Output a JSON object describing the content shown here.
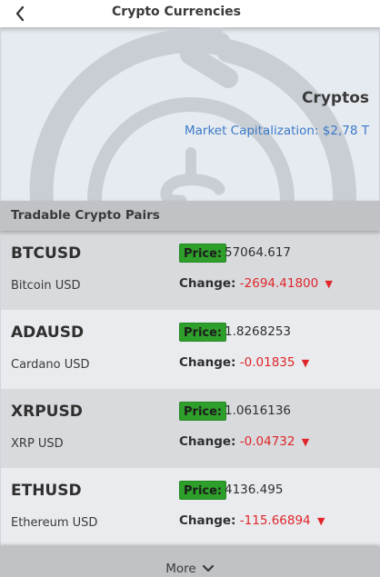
{
  "header": {
    "title": "Crypto Currencies",
    "back_icon": "chevron-left-icon"
  },
  "hero": {
    "title": "Cryptos",
    "market_cap": "Market Capitalization: $2,78 T",
    "background_icon": "refresh-dollar-icon"
  },
  "section": {
    "title": "Tradable Crypto Pairs"
  },
  "labels": {
    "price": "Price:",
    "change": "Change:"
  },
  "pairs": [
    {
      "symbol": "BTCUSD",
      "name": "Bitcoin USD",
      "price": "57064.617",
      "change": "-2694.41800",
      "direction": "down"
    },
    {
      "symbol": "ADAUSD",
      "name": "Cardano USD",
      "price": "1.8268253",
      "change": "-0.01835",
      "direction": "down"
    },
    {
      "symbol": "XRPUSD",
      "name": "XRP USD",
      "price": "1.0616136",
      "change": "-0.04732",
      "direction": "down"
    },
    {
      "symbol": "ETHUSD",
      "name": "Ethereum USD",
      "price": "4136.495",
      "change": "-115.66894",
      "direction": "down"
    }
  ],
  "footer": {
    "more_label": "More",
    "more_icon": "chevron-down-icon"
  },
  "colors": {
    "accent": "#3c79c7",
    "price_badge": "#2e9f2a",
    "negative": "#e0262a"
  }
}
